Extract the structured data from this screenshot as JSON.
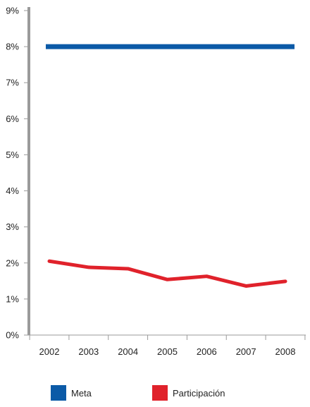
{
  "chart_data": {
    "type": "line",
    "x": [
      "2002",
      "2003",
      "2004",
      "2005",
      "2006",
      "2007",
      "2008"
    ],
    "series": [
      {
        "name": "Meta",
        "color": "#0b5aa7",
        "values": [
          8,
          8,
          8,
          8,
          8,
          8,
          8
        ]
      },
      {
        "name": "Participación",
        "color": "#e0222b",
        "values": [
          2.05,
          1.88,
          1.84,
          1.54,
          1.63,
          1.36,
          1.49
        ]
      }
    ],
    "ylim": [
      0,
      9
    ],
    "yticks": [
      "0%",
      "1%",
      "2%",
      "3%",
      "4%",
      "5%",
      "6%",
      "7%",
      "8%",
      "9%"
    ],
    "grid": false,
    "legend_position": "bottom"
  }
}
